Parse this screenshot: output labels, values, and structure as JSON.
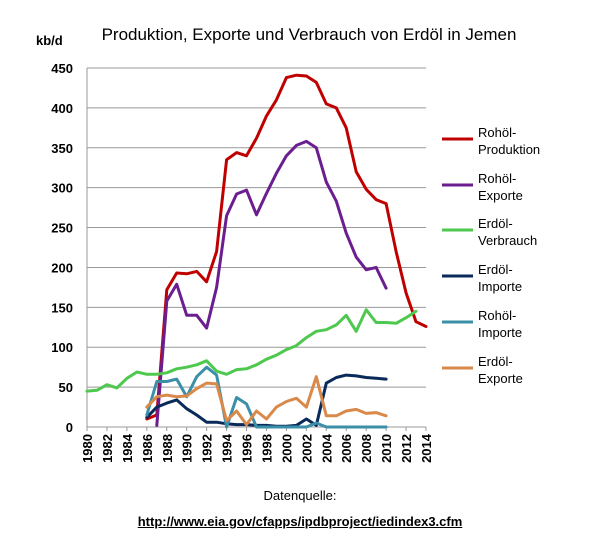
{
  "chart_data": {
    "type": "line",
    "title": "Produktion, Exporte und Verbrauch von Erdöl in Jemen",
    "ylabel": "kb/d",
    "xlabel": "",
    "xlim": [
      1980,
      2014
    ],
    "ylim": [
      0,
      450
    ],
    "yticks": [
      0,
      50,
      100,
      150,
      200,
      250,
      300,
      350,
      400,
      450
    ],
    "xticks": [
      1980,
      1982,
      1984,
      1986,
      1988,
      1990,
      1992,
      1994,
      1996,
      1998,
      2000,
      2002,
      2004,
      2006,
      2008,
      2010,
      2012,
      2014
    ],
    "grid": "horizontal",
    "legend_position": "right",
    "series": [
      {
        "name_lines": [
          "Rohöl-",
          "Produktion"
        ],
        "color": "#c00000",
        "points": [
          [
            1986,
            10
          ],
          [
            1987,
            15
          ],
          [
            1988,
            172
          ],
          [
            1989,
            193
          ],
          [
            1990,
            192
          ],
          [
            1991,
            195
          ],
          [
            1992,
            182
          ],
          [
            1993,
            220
          ],
          [
            1994,
            335
          ],
          [
            1995,
            344
          ],
          [
            1996,
            340
          ],
          [
            1997,
            362
          ],
          [
            1998,
            390
          ],
          [
            1999,
            410
          ],
          [
            2000,
            438
          ],
          [
            2001,
            441
          ],
          [
            2002,
            440
          ],
          [
            2003,
            432
          ],
          [
            2004,
            405
          ],
          [
            2005,
            400
          ],
          [
            2006,
            375
          ],
          [
            2007,
            320
          ],
          [
            2008,
            298
          ],
          [
            2009,
            285
          ],
          [
            2010,
            280
          ],
          [
            2011,
            220
          ],
          [
            2012,
            168
          ],
          [
            2013,
            132
          ],
          [
            2014,
            126
          ]
        ]
      },
      {
        "name_lines": [
          "Rohöl-",
          "Exporte"
        ],
        "color": "#6b1e8f",
        "points": [
          [
            1987,
            2
          ],
          [
            1988,
            158
          ],
          [
            1989,
            179
          ],
          [
            1990,
            140
          ],
          [
            1991,
            140
          ],
          [
            1992,
            124
          ],
          [
            1993,
            175
          ],
          [
            1994,
            265
          ],
          [
            1995,
            292
          ],
          [
            1996,
            297
          ],
          [
            1997,
            266
          ],
          [
            1998,
            293
          ],
          [
            1999,
            318
          ],
          [
            2000,
            340
          ],
          [
            2001,
            353
          ],
          [
            2002,
            358
          ],
          [
            2003,
            350
          ],
          [
            2004,
            307
          ],
          [
            2005,
            283
          ],
          [
            2006,
            243
          ],
          [
            2007,
            213
          ],
          [
            2008,
            197
          ],
          [
            2009,
            200
          ],
          [
            2010,
            174
          ]
        ]
      },
      {
        "name_lines": [
          "Erdöl-",
          "Verbrauch"
        ],
        "color": "#4ec84e",
        "points": [
          [
            1980,
            45
          ],
          [
            1981,
            46
          ],
          [
            1982,
            53
          ],
          [
            1983,
            49
          ],
          [
            1984,
            61
          ],
          [
            1985,
            69
          ],
          [
            1986,
            66
          ],
          [
            1987,
            66
          ],
          [
            1988,
            68
          ],
          [
            1989,
            73
          ],
          [
            1990,
            75
          ],
          [
            1991,
            78
          ],
          [
            1992,
            83
          ],
          [
            1993,
            70
          ],
          [
            1994,
            66
          ],
          [
            1995,
            72
          ],
          [
            1996,
            73
          ],
          [
            1997,
            78
          ],
          [
            1998,
            85
          ],
          [
            1999,
            90
          ],
          [
            2000,
            97
          ],
          [
            2001,
            102
          ],
          [
            2002,
            112
          ],
          [
            2003,
            120
          ],
          [
            2004,
            122
          ],
          [
            2005,
            128
          ],
          [
            2006,
            140
          ],
          [
            2007,
            120
          ],
          [
            2008,
            147
          ],
          [
            2009,
            131
          ],
          [
            2010,
            131
          ],
          [
            2011,
            130
          ],
          [
            2012,
            137
          ],
          [
            2013,
            145
          ]
        ]
      },
      {
        "name_lines": [
          "Erdöl-",
          "Importe"
        ],
        "color": "#0a2a5a",
        "points": [
          [
            1986,
            12
          ],
          [
            1987,
            25
          ],
          [
            1988,
            30
          ],
          [
            1989,
            34
          ],
          [
            1990,
            23
          ],
          [
            1991,
            15
          ],
          [
            1992,
            6
          ],
          [
            1993,
            6
          ],
          [
            1994,
            4
          ],
          [
            1995,
            3
          ],
          [
            1996,
            3
          ],
          [
            1997,
            2
          ],
          [
            1998,
            2
          ],
          [
            1999,
            1
          ],
          [
            2000,
            1
          ],
          [
            2001,
            2
          ],
          [
            2002,
            10
          ],
          [
            2003,
            2
          ],
          [
            2004,
            55
          ],
          [
            2005,
            62
          ],
          [
            2006,
            65
          ],
          [
            2007,
            64
          ],
          [
            2008,
            62
          ],
          [
            2009,
            61
          ],
          [
            2010,
            60
          ]
        ]
      },
      {
        "name_lines": [
          "Rohöl-",
          "Importe"
        ],
        "color": "#3c8fa8",
        "points": [
          [
            1986,
            15
          ],
          [
            1987,
            57
          ],
          [
            1988,
            57
          ],
          [
            1989,
            60
          ],
          [
            1990,
            38
          ],
          [
            1991,
            63
          ],
          [
            1992,
            75
          ],
          [
            1993,
            65
          ],
          [
            1994,
            0
          ],
          [
            1995,
            37
          ],
          [
            1996,
            29
          ],
          [
            1997,
            0
          ],
          [
            1998,
            0
          ],
          [
            1999,
            0
          ],
          [
            2000,
            0
          ],
          [
            2001,
            0
          ],
          [
            2002,
            0
          ],
          [
            2003,
            5
          ],
          [
            2004,
            0
          ],
          [
            2005,
            0
          ],
          [
            2006,
            0
          ],
          [
            2007,
            0
          ],
          [
            2008,
            0
          ],
          [
            2009,
            0
          ],
          [
            2010,
            0
          ]
        ]
      },
      {
        "name_lines": [
          "Erdöl-",
          "Exporte"
        ],
        "color": "#d9894a",
        "points": [
          [
            1986,
            25
          ],
          [
            1987,
            38
          ],
          [
            1988,
            40
          ],
          [
            1989,
            38
          ],
          [
            1990,
            39
          ],
          [
            1991,
            48
          ],
          [
            1992,
            55
          ],
          [
            1993,
            54
          ],
          [
            1994,
            8
          ],
          [
            1995,
            20
          ],
          [
            1996,
            3
          ],
          [
            1997,
            20
          ],
          [
            1998,
            10
          ],
          [
            1999,
            25
          ],
          [
            2000,
            32
          ],
          [
            2001,
            36
          ],
          [
            2002,
            25
          ],
          [
            2003,
            63
          ],
          [
            2004,
            14
          ],
          [
            2005,
            14
          ],
          [
            2006,
            20
          ],
          [
            2007,
            22
          ],
          [
            2008,
            17
          ],
          [
            2009,
            18
          ],
          [
            2010,
            14
          ]
        ]
      }
    ]
  },
  "source": {
    "label": "Datenquelle:",
    "url": "http://www.eia.gov/cfapps/ipdbproject/iedindex3.cfm"
  }
}
